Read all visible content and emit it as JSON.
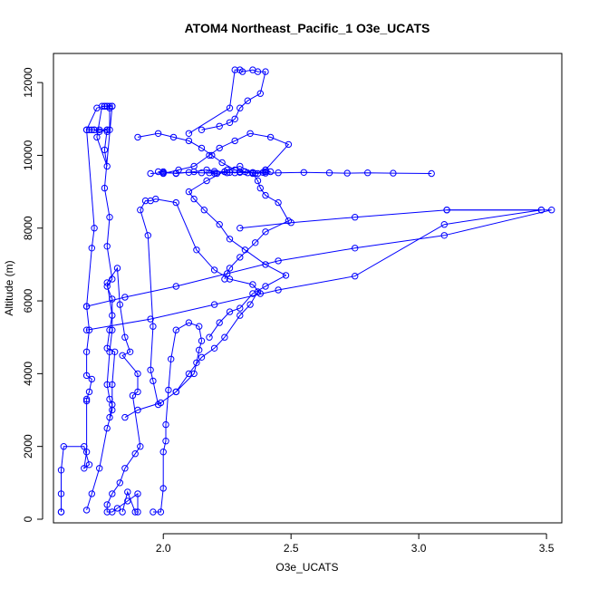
{
  "chart_data": {
    "type": "line",
    "title": "ATOM4 Northeast_Pacific_1 O3e_UCATS",
    "xlabel": "O3e_UCATS",
    "ylabel": "Altitude (m)",
    "xlim": [
      1.57,
      3.56
    ],
    "ylim": [
      -100,
      12800
    ],
    "x_ticks": [
      2.0,
      2.5,
      3.0,
      3.5
    ],
    "x_tick_labels": [
      "2.0",
      "2.5",
      "3.0",
      "3.5"
    ],
    "y_ticks": [
      0,
      2000,
      4000,
      6000,
      8000,
      10000,
      12000
    ],
    "y_tick_labels": [
      "0",
      "2000",
      "4000",
      "6000",
      "8000",
      "10000",
      "12000"
    ],
    "grid": false,
    "legend": "none",
    "series_color": "#0000ff",
    "marker": "open-circle",
    "series": [
      {
        "x": [
          1.6,
          1.6,
          1.6,
          1.6,
          1.61,
          1.69,
          1.71,
          1.69,
          1.7,
          1.7,
          1.7,
          1.71,
          1.72,
          1.7,
          1.7,
          1.71,
          1.7,
          1.72,
          1.73,
          1.7,
          1.73,
          1.75,
          1.78,
          1.77,
          1.78,
          1.74,
          1.76,
          1.78,
          1.8,
          1.77,
          1.74,
          1.7,
          1.71,
          1.72,
          1.73,
          1.75,
          1.78,
          1.78,
          1.79,
          1.79,
          1.78,
          1.77,
          1.79,
          1.8,
          1.77,
          1.79,
          1.78,
          1.8,
          1.78,
          1.8,
          1.8,
          1.79,
          1.78,
          1.79,
          1.8,
          1.79
        ],
        "y": [
          200,
          200,
          700,
          1350,
          2000,
          2000,
          1500,
          1400,
          1850,
          3250,
          3300,
          3500,
          3850,
          3950,
          4600,
          5200,
          5850,
          7450,
          8000,
          10700,
          10700,
          10700,
          10700,
          10150,
          9700,
          10500,
          11350,
          11350,
          11350,
          11350,
          11300,
          10700,
          10700,
          10700,
          10700,
          10650,
          10700,
          10650,
          10700,
          11300,
          11350,
          11350,
          11350,
          11350,
          9100,
          8300,
          7500,
          6600,
          6400,
          6050,
          5200,
          4600,
          3700,
          3300,
          3150,
          2800
        ]
      },
      {
        "x": [
          1.7,
          1.72,
          1.75,
          1.78,
          1.8,
          1.8,
          1.81,
          1.78,
          1.79,
          1.8,
          1.78,
          1.82,
          1.83,
          1.85,
          1.87,
          1.84,
          1.9,
          1.9,
          1.88,
          1.91,
          1.89,
          1.85,
          1.83,
          1.8,
          1.78,
          1.78,
          1.8,
          1.82,
          1.86,
          1.9,
          1.9,
          1.89,
          1.86,
          1.84
        ],
        "y": [
          250,
          700,
          1400,
          2500,
          3000,
          3700,
          4600,
          4700,
          5200,
          5600,
          6500,
          6900,
          5900,
          5000,
          4600,
          4500,
          4000,
          3500,
          3400,
          2000,
          1800,
          1400,
          1000,
          700,
          400,
          200,
          200,
          300,
          500,
          700,
          200,
          200,
          750,
          200
        ]
      },
      {
        "x": [
          1.96,
          1.99,
          2.0,
          2.0,
          2.01,
          2.01,
          2.02,
          2.03,
          2.05,
          2.1,
          2.14,
          2.15,
          2.14,
          2.13,
          2.12,
          2.05,
          1.98,
          1.96,
          1.95,
          1.96,
          1.94,
          1.91,
          1.93,
          1.95,
          1.97,
          2.05,
          2.13,
          2.2,
          2.26,
          2.35,
          2.38,
          2.37,
          2.34,
          2.3,
          2.24,
          2.2,
          2.15,
          2.1,
          2.05,
          1.99,
          1.9,
          1.85
        ],
        "y": [
          200,
          200,
          850,
          1850,
          2150,
          2600,
          3550,
          4400,
          5200,
          5400,
          5300,
          4900,
          4650,
          4300,
          4000,
          3500,
          3150,
          3800,
          4100,
          5300,
          7800,
          8500,
          8750,
          8750,
          8800,
          8700,
          7400,
          6850,
          6600,
          6450,
          6200,
          6250,
          5900,
          5600,
          5000,
          4700,
          4450,
          4000,
          3500,
          3200,
          3000,
          2800
        ]
      },
      {
        "x": [
          2.18,
          2.22,
          2.26,
          2.3,
          2.35,
          2.4,
          2.48,
          2.4,
          2.32,
          2.26,
          2.22,
          2.16,
          2.12,
          2.1,
          2.17,
          2.25,
          2.3,
          2.35,
          2.37,
          2.38,
          2.4,
          2.45,
          2.49,
          2.4,
          2.36,
          2.3,
          2.26,
          2.24
        ],
        "y": [
          5000,
          5400,
          5700,
          5800,
          6200,
          6400,
          6700,
          7000,
          7400,
          7700,
          8100,
          8500,
          8800,
          9000,
          9300,
          9600,
          9700,
          9500,
          9300,
          9100,
          8900,
          8700,
          8200,
          7900,
          7600,
          7200,
          6900,
          6600
        ]
      },
      {
        "x": [
          1.9,
          1.98,
          2.04,
          2.1,
          2.15,
          2.19,
          2.23,
          2.28,
          2.32,
          2.36,
          2.4,
          2.49,
          2.42,
          2.34,
          2.28,
          2.22,
          2.18,
          2.12,
          2.06,
          2.0,
          1.98,
          2.0,
          2.05,
          2.12,
          2.17,
          2.21,
          2.24,
          2.28,
          2.3,
          2.35,
          2.37,
          2.4,
          2.4,
          2.42,
          2.39,
          2.33,
          2.3,
          2.26,
          2.24,
          2.2,
          2.18
        ],
        "y": [
          10500,
          10600,
          10500,
          10400,
          10200,
          10000,
          9800,
          9600,
          9550,
          9500,
          9600,
          10300,
          10500,
          10600,
          10400,
          10200,
          10000,
          9700,
          9600,
          9500,
          9550,
          9550,
          9500,
          9550,
          9600,
          9500,
          9550,
          9520,
          9550,
          9530,
          9500,
          9550,
          9600,
          9550,
          9530,
          9520,
          9540,
          9530,
          9550,
          9560,
          9520
        ]
      },
      {
        "x": [
          1.95,
          2.0,
          2.05,
          2.1,
          2.15,
          2.2,
          2.25,
          2.3,
          2.35,
          2.4,
          2.45,
          2.55,
          2.65,
          2.72,
          2.8,
          2.9,
          3.05
        ],
        "y": [
          9500,
          9520,
          9510,
          9530,
          9520,
          9510,
          9520,
          9530,
          9520,
          9510,
          9520,
          9530,
          9520,
          9510,
          9520,
          9510,
          9500
        ]
      },
      {
        "x": [
          1.7,
          1.85,
          2.05,
          2.25,
          2.45,
          2.75,
          3.1,
          3.52,
          3.48,
          3.11,
          2.75,
          2.5,
          2.3
        ],
        "y": [
          5850,
          6100,
          6400,
          6750,
          7100,
          7450,
          7800,
          8500,
          8500,
          8500,
          8300,
          8150,
          8000
        ]
      },
      {
        "x": [
          1.7,
          1.95,
          2.2,
          2.45,
          2.75,
          3.1,
          3.48,
          3.11
        ],
        "y": [
          5200,
          5500,
          5900,
          6300,
          6680,
          8100,
          8500,
          8500
        ]
      },
      {
        "x": [
          2.1,
          2.26,
          2.28,
          2.3,
          2.31,
          2.35,
          2.37,
          2.4,
          2.38,
          2.33,
          2.3,
          2.28,
          2.26,
          2.22,
          2.15
        ],
        "y": [
          10600,
          11300,
          12350,
          12350,
          12300,
          12350,
          12300,
          12300,
          11700,
          11500,
          11300,
          11000,
          10900,
          10800,
          10700
        ]
      }
    ]
  }
}
